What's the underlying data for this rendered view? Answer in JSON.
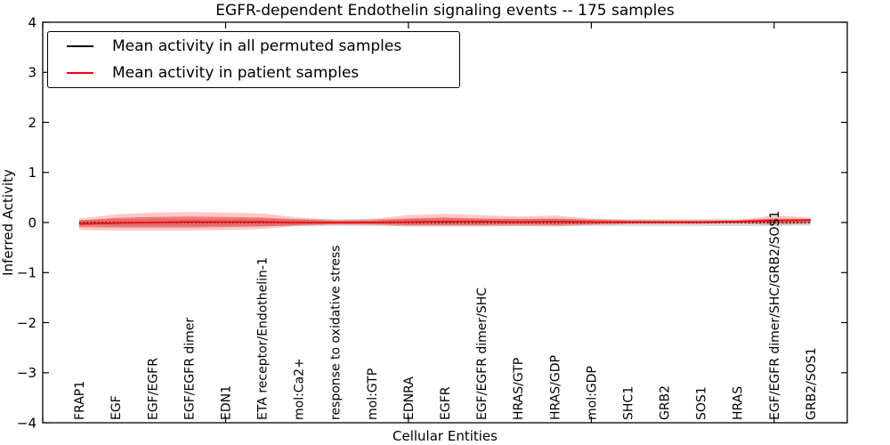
{
  "chart_data": {
    "type": "line",
    "title": "EGFR-dependent Endothelin signaling events -- 175 samples",
    "xlabel": "Cellular Entities",
    "ylabel": "Inferred Activity",
    "ylim": [
      -4,
      4
    ],
    "xlim": [
      0,
      22
    ],
    "yticks": [
      4,
      3,
      2,
      1,
      0,
      -1,
      -2,
      -3,
      -4
    ],
    "x_major_tick_positions": [
      0,
      5,
      10,
      15,
      20
    ],
    "grid": false,
    "legend_position": "upper left",
    "categories": [
      "FRAP1",
      "EGF",
      "EGF/EGFR",
      "EGF/EGFR dimer",
      "EDN1",
      "ETA receptor/Endothelin-1",
      "mol:Ca2+",
      "response to oxidative stress",
      "mol:GTP",
      "EDNRA",
      "EGFR",
      "EGF/EGFR dimer/SHC",
      "HRAS/GTP",
      "HRAS/GDP",
      "mol:GDP",
      "SHC1",
      "GRB2",
      "SOS1",
      "HRAS",
      "EGF/EGFR dimer/SHC/GRB2/SOS1",
      "GRB2/SOS1"
    ],
    "x_positions": [
      1,
      2,
      3,
      4,
      5,
      6,
      7,
      8,
      9,
      10,
      11,
      12,
      13,
      14,
      15,
      16,
      17,
      18,
      19,
      20,
      21
    ],
    "legend": [
      {
        "label": "Mean activity in all permuted samples",
        "color": "#000000"
      },
      {
        "label": "Mean activity in patient samples",
        "color": "#ff0000"
      }
    ],
    "series": [
      {
        "name": "permuted_mean",
        "color": "#000000",
        "style": "dotted",
        "width": 1.4,
        "values": [
          0,
          0,
          0,
          0,
          0,
          0,
          0,
          0,
          0,
          0,
          0,
          0,
          0,
          0,
          0,
          0,
          0,
          0,
          0,
          0,
          0
        ]
      },
      {
        "name": "patient_mean",
        "color": "#ff0000",
        "style": "solid",
        "width": 1.6,
        "values": [
          -0.03,
          -0.01,
          0.0,
          0.01,
          0.01,
          0.01,
          0.0,
          0.0,
          0.0,
          0.01,
          0.02,
          0.02,
          0.01,
          0.02,
          0.01,
          0.01,
          0.01,
          0.01,
          0.02,
          0.04,
          0.05
        ]
      }
    ],
    "bands": [
      {
        "name": "permuted_std",
        "color": "#999999",
        "opacity": 0.4,
        "upper": [
          0.05,
          0.07,
          0.07,
          0.07,
          0.07,
          0.07,
          0.07,
          0.07,
          0.07,
          0.07,
          0.07,
          0.07,
          0.07,
          0.07,
          0.07,
          0.07,
          0.07,
          0.07,
          0.07,
          0.07,
          0.06
        ],
        "lower": [
          -0.05,
          -0.07,
          -0.07,
          -0.07,
          -0.07,
          -0.07,
          -0.07,
          -0.07,
          -0.07,
          -0.07,
          -0.07,
          -0.07,
          -0.07,
          -0.07,
          -0.07,
          -0.07,
          -0.07,
          -0.07,
          -0.07,
          -0.07,
          -0.06
        ]
      },
      {
        "name": "patient_std_outer",
        "color": "#ff4444",
        "opacity": 0.3,
        "upper": [
          0.08,
          0.16,
          0.2,
          0.21,
          0.2,
          0.18,
          0.1,
          0.05,
          0.07,
          0.15,
          0.17,
          0.15,
          0.12,
          0.14,
          0.08,
          0.05,
          0.04,
          0.04,
          0.05,
          0.14,
          0.1
        ],
        "lower": [
          -0.15,
          -0.16,
          -0.16,
          -0.16,
          -0.15,
          -0.13,
          -0.07,
          -0.04,
          -0.05,
          -0.08,
          -0.08,
          -0.08,
          -0.07,
          -0.08,
          -0.05,
          -0.03,
          -0.03,
          -0.03,
          -0.02,
          -0.05,
          -0.02
        ]
      },
      {
        "name": "patient_std_inner",
        "color": "#dd2222",
        "opacity": 0.45,
        "upper": [
          0.04,
          0.09,
          0.11,
          0.12,
          0.11,
          0.1,
          0.06,
          0.03,
          0.04,
          0.08,
          0.1,
          0.08,
          0.07,
          0.08,
          0.05,
          0.03,
          0.03,
          0.03,
          0.03,
          0.08,
          0.07
        ],
        "lower": [
          -0.09,
          -0.1,
          -0.1,
          -0.1,
          -0.09,
          -0.08,
          -0.05,
          -0.03,
          -0.03,
          -0.05,
          -0.05,
          -0.05,
          -0.04,
          -0.05,
          -0.03,
          -0.02,
          -0.02,
          -0.02,
          -0.01,
          -0.02,
          -0.01
        ]
      }
    ]
  }
}
